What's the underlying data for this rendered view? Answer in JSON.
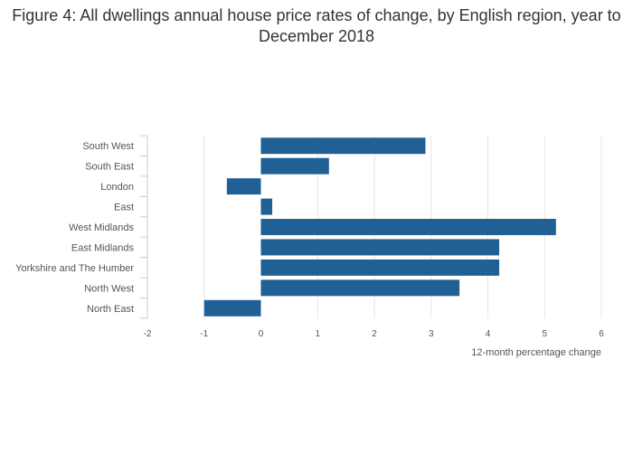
{
  "chart_data": {
    "type": "bar",
    "orientation": "horizontal",
    "title": "Figure 4: All dwellings annual house price rates of change, by English region, year to December 2018",
    "xlabel": "12-month percentage change",
    "ylabel": "",
    "categories": [
      "South West",
      "South East",
      "London",
      "East",
      "West Midlands",
      "East Midlands",
      "Yorkshire and The Humber",
      "North West",
      "North East"
    ],
    "values": [
      2.9,
      1.2,
      -0.6,
      0.2,
      5.2,
      4.2,
      4.2,
      3.5,
      -1.0
    ],
    "xlim": [
      -2,
      6
    ],
    "xticks": [
      "-2",
      "-1",
      "0",
      "1",
      "2",
      "3",
      "4",
      "5",
      "6"
    ],
    "grid": true,
    "bar_color": "#206095",
    "gridline_color": "#e6e6e6"
  }
}
